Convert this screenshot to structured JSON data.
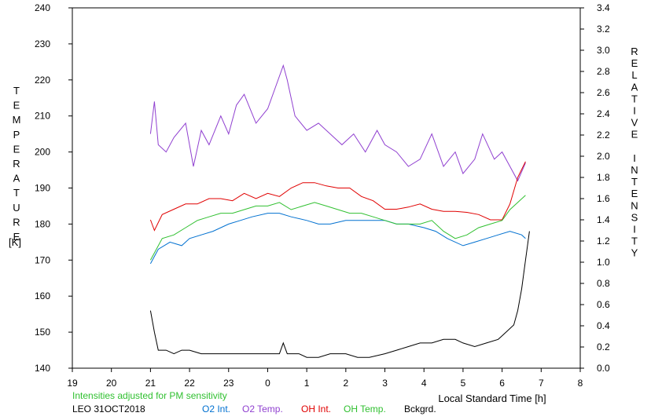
{
  "chart_data": {
    "type": "line",
    "xlabel": "Local Standard Time [h]",
    "ylabel_left": "TEMPERATURE",
    "ylabel_left_unit": "[K]",
    "ylabel_right": "RELATIVE INTENSITY",
    "x_ticks": [
      "19",
      "20",
      "21",
      "22",
      "23",
      "0",
      "1",
      "2",
      "3",
      "4",
      "5",
      "6",
      "7",
      "8"
    ],
    "x_range_hours": [
      19,
      32
    ],
    "y_left_range": [
      140,
      240
    ],
    "y_left_ticks": [
      140,
      150,
      160,
      170,
      180,
      190,
      200,
      210,
      220,
      230,
      240
    ],
    "y_right_range": [
      0.0,
      3.4
    ],
    "y_right_ticks": [
      "0.0",
      "0.2",
      "0.4",
      "0.6",
      "0.8",
      "1.0",
      "1.2",
      "1.4",
      "1.6",
      "1.8",
      "2.0",
      "2.2",
      "2.4",
      "2.6",
      "2.8",
      "3.0",
      "3.2",
      "3.4"
    ],
    "grid": false,
    "series": [
      {
        "name": "O2 Int.",
        "color": "#0070d0",
        "axis": "left",
        "x": [
          21.0,
          21.2,
          21.5,
          21.8,
          22.0,
          22.3,
          22.6,
          23.0,
          23.3,
          23.6,
          24.0,
          24.3,
          24.6,
          25.0,
          25.3,
          25.6,
          26.0,
          26.3,
          26.6,
          27.0,
          27.3,
          27.6,
          28.0,
          28.3,
          28.6,
          29.0,
          29.3,
          29.6,
          29.9,
          30.2,
          30.5,
          30.6
        ],
        "y": [
          169,
          173,
          175,
          174,
          176,
          177,
          178,
          180,
          181,
          182,
          183,
          183,
          182,
          181,
          180,
          180,
          181,
          181,
          181,
          181,
          180,
          180,
          179,
          178,
          176,
          174,
          175,
          176,
          177,
          178,
          177,
          176
        ]
      },
      {
        "name": "O2 Temp.",
        "color": "#9040d0",
        "axis": "left",
        "x": [
          21.0,
          21.1,
          21.2,
          21.4,
          21.6,
          21.9,
          22.1,
          22.3,
          22.5,
          22.8,
          23.0,
          23.2,
          23.4,
          23.7,
          24.0,
          24.2,
          24.4,
          24.5,
          24.7,
          25.0,
          25.3,
          25.6,
          25.9,
          26.2,
          26.5,
          26.8,
          27.0,
          27.3,
          27.6,
          27.9,
          28.2,
          28.5,
          28.8,
          29.0,
          29.3,
          29.5,
          29.8,
          30.0,
          30.2,
          30.4,
          30.6
        ],
        "y": [
          205,
          214,
          202,
          200,
          204,
          208,
          196,
          206,
          202,
          210,
          205,
          213,
          216,
          208,
          212,
          218,
          224,
          220,
          210,
          206,
          208,
          205,
          202,
          205,
          200,
          206,
          202,
          200,
          196,
          198,
          205,
          196,
          200,
          194,
          198,
          205,
          198,
          200,
          196,
          192,
          197
        ]
      },
      {
        "name": "OH Int.",
        "color": "#e00000",
        "axis": "right",
        "x": [
          21.0,
          21.1,
          21.3,
          21.6,
          21.9,
          22.2,
          22.5,
          22.8,
          23.1,
          23.4,
          23.7,
          24.0,
          24.3,
          24.6,
          24.9,
          25.2,
          25.5,
          25.8,
          26.1,
          26.4,
          26.7,
          27.0,
          27.3,
          27.6,
          27.9,
          28.2,
          28.5,
          28.8,
          29.1,
          29.4,
          29.7,
          30.0,
          30.2,
          30.4,
          30.6
        ],
        "y": [
          1.4,
          1.3,
          1.45,
          1.5,
          1.55,
          1.55,
          1.6,
          1.6,
          1.58,
          1.65,
          1.6,
          1.65,
          1.62,
          1.7,
          1.75,
          1.75,
          1.72,
          1.7,
          1.7,
          1.62,
          1.58,
          1.5,
          1.5,
          1.52,
          1.55,
          1.5,
          1.48,
          1.48,
          1.47,
          1.45,
          1.4,
          1.4,
          1.55,
          1.8,
          1.95
        ]
      },
      {
        "name": "OH Temp.",
        "color": "#30c030",
        "axis": "left",
        "x": [
          21.0,
          21.1,
          21.3,
          21.6,
          21.9,
          22.2,
          22.5,
          22.8,
          23.1,
          23.4,
          23.7,
          24.0,
          24.3,
          24.6,
          24.9,
          25.2,
          25.5,
          25.8,
          26.1,
          26.4,
          26.7,
          27.0,
          27.3,
          27.6,
          27.9,
          28.2,
          28.5,
          28.8,
          29.1,
          29.4,
          29.7,
          30.0,
          30.2,
          30.4,
          30.6
        ],
        "y": [
          170,
          172,
          176,
          177,
          179,
          181,
          182,
          183,
          183,
          184,
          185,
          185,
          186,
          184,
          185,
          186,
          185,
          184,
          183,
          183,
          182,
          181,
          180,
          180,
          180,
          181,
          178,
          176,
          177,
          179,
          180,
          181,
          184,
          186,
          188
        ]
      },
      {
        "name": "Bckgrd.",
        "color": "#000000",
        "axis": "left",
        "x": [
          21.0,
          21.1,
          21.2,
          21.4,
          21.6,
          21.8,
          22.0,
          22.3,
          22.6,
          23.0,
          23.3,
          23.6,
          24.0,
          24.3,
          24.4,
          24.5,
          24.8,
          25.0,
          25.3,
          25.6,
          26.0,
          26.3,
          26.6,
          27.0,
          27.3,
          27.6,
          27.9,
          28.2,
          28.5,
          28.8,
          29.0,
          29.3,
          29.6,
          29.9,
          30.1,
          30.3,
          30.4,
          30.5,
          30.6,
          30.7
        ],
        "y": [
          156,
          150,
          145,
          145,
          144,
          145,
          145,
          144,
          144,
          144,
          144,
          144,
          144,
          144,
          147,
          144,
          144,
          143,
          143,
          144,
          144,
          143,
          143,
          144,
          145,
          146,
          147,
          147,
          148,
          148,
          147,
          146,
          147,
          148,
          150,
          152,
          156,
          162,
          170,
          178
        ]
      }
    ]
  },
  "footer": {
    "note": "Intensities adjusted for PM sensitivity",
    "station": "LEO 31OCT2018"
  }
}
